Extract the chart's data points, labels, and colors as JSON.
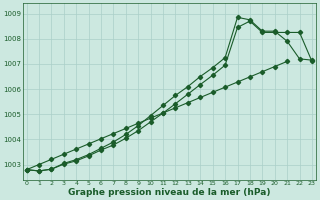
{
  "title": "Graphe pression niveau de la mer (hPa)",
  "bg_color": "#cce8e0",
  "grid_color": "#aacfc8",
  "line_color": "#1a5c2a",
  "ylabel_ticks": [
    1003,
    1004,
    1005,
    1006,
    1007,
    1008,
    1009
  ],
  "xlim": [
    -0.3,
    23.3
  ],
  "ylim": [
    1002.4,
    1009.4
  ],
  "line3": [
    1002.8,
    1002.78,
    1002.82,
    1003.0,
    1003.08,
    1003.18,
    1003.3,
    1003.45,
    1003.65,
    1003.85,
    1004.1,
    1004.35,
    1004.65,
    1004.95,
    1005.25,
    1005.55,
    1005.9,
    1006.25,
    1006.6,
    1006.95,
    1007.3,
    1007.7,
    1007.1,
    null
  ],
  "hours": [
    0,
    1,
    2,
    3,
    4,
    5,
    6,
    7,
    8,
    9,
    10,
    11,
    12,
    13,
    14,
    15,
    16,
    17,
    18,
    19,
    20,
    21,
    22,
    23
  ]
}
